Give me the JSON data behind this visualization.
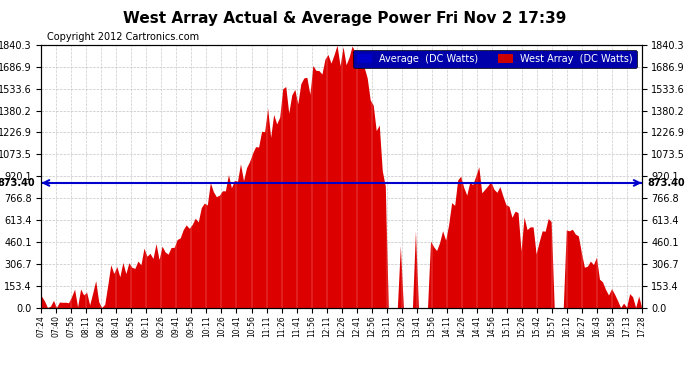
{
  "title": "West Array Actual & Average Power Fri Nov 2 17:39",
  "copyright": "Copyright 2012 Cartronics.com",
  "legend_labels": [
    "Average  (DC Watts)",
    "West Array  (DC Watts)"
  ],
  "legend_colors": [
    "#0000cc",
    "#cc0000"
  ],
  "average_value": 873.4,
  "y_max": 1840.3,
  "y_ticks": [
    0.0,
    153.4,
    306.7,
    460.1,
    613.4,
    766.8,
    920.1,
    1073.5,
    1226.9,
    1380.2,
    1533.6,
    1686.9,
    1840.3
  ],
  "x_tick_labels": [
    "07:24",
    "07:40",
    "07:56",
    "08:11",
    "08:26",
    "08:41",
    "08:56",
    "09:11",
    "09:26",
    "09:41",
    "09:56",
    "10:11",
    "10:26",
    "10:41",
    "10:56",
    "11:11",
    "11:26",
    "11:41",
    "11:56",
    "12:11",
    "12:26",
    "12:41",
    "12:56",
    "13:11",
    "13:26",
    "13:41",
    "13:56",
    "14:11",
    "14:26",
    "14:41",
    "14:56",
    "15:11",
    "15:26",
    "15:42",
    "15:57",
    "16:12",
    "16:27",
    "16:43",
    "16:58",
    "17:13",
    "17:28"
  ],
  "bar_color": "#dd0000",
  "avg_line_color": "#0000cc",
  "grid_color": "#aaaaaa",
  "bg_color": "#ffffff",
  "left_label": "873.40",
  "right_label": "873.40"
}
